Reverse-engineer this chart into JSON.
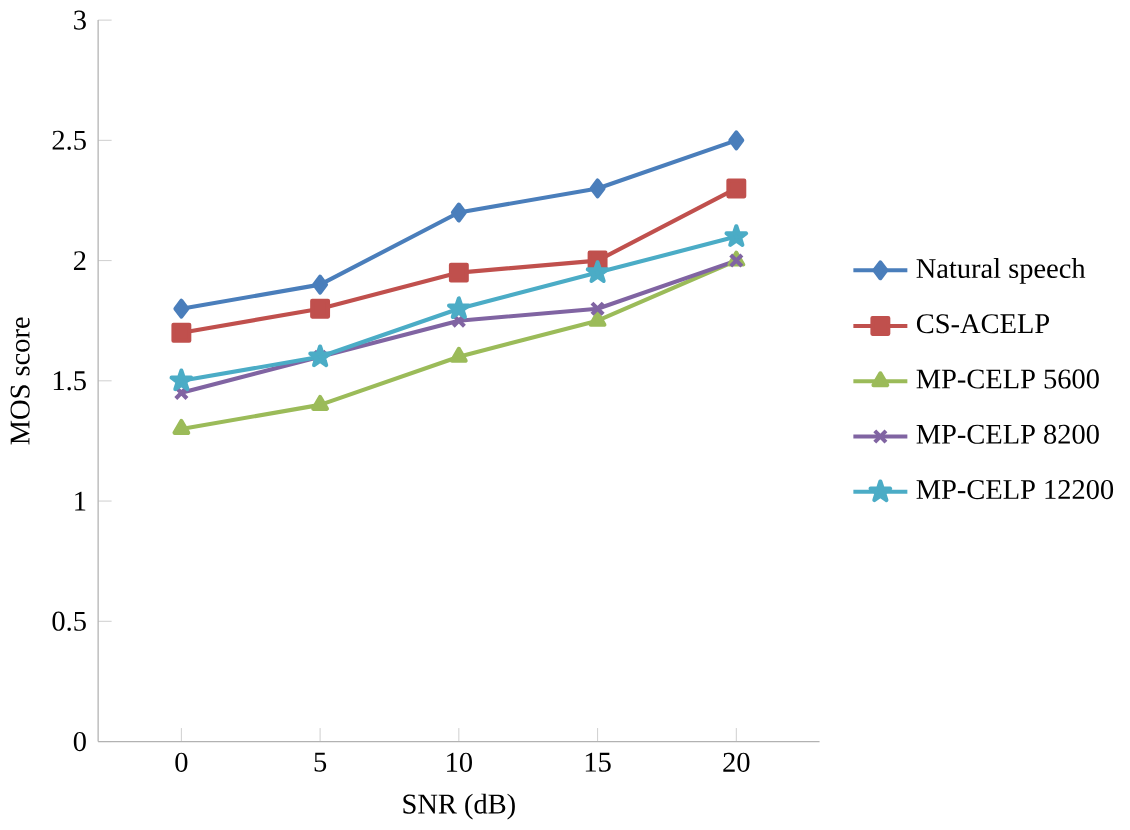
{
  "chart_data": {
    "type": "line",
    "xlabel": "SNR (dB)",
    "ylabel": "MOS score",
    "categories": [
      "0",
      "5",
      "10",
      "15",
      "20"
    ],
    "ylim": [
      0,
      3
    ],
    "yticks": [
      0,
      0.5,
      1,
      1.5,
      2,
      2.5,
      3
    ],
    "legend": "right",
    "series": [
      {
        "name": "Natural speech",
        "color": "#4a7ebb",
        "marker": "diamond",
        "values": [
          1.8,
          1.9,
          2.2,
          2.3,
          2.5
        ]
      },
      {
        "name": "CS-ACELP",
        "color": "#c0504d",
        "marker": "square",
        "values": [
          1.7,
          1.8,
          1.95,
          2.0,
          2.3
        ]
      },
      {
        "name": "MP-CELP 5600",
        "color": "#9bbb59",
        "marker": "triangle",
        "values": [
          1.3,
          1.4,
          1.6,
          1.75,
          2.0
        ]
      },
      {
        "name": "MP-CELP 8200",
        "color": "#8064a2",
        "marker": "cross",
        "values": [
          1.45,
          1.6,
          1.75,
          1.8,
          2.0
        ]
      },
      {
        "name": "MP-CELP 12200",
        "color": "#4bacc6",
        "marker": "star",
        "values": [
          1.5,
          1.6,
          1.8,
          1.95,
          2.1
        ]
      }
    ]
  }
}
